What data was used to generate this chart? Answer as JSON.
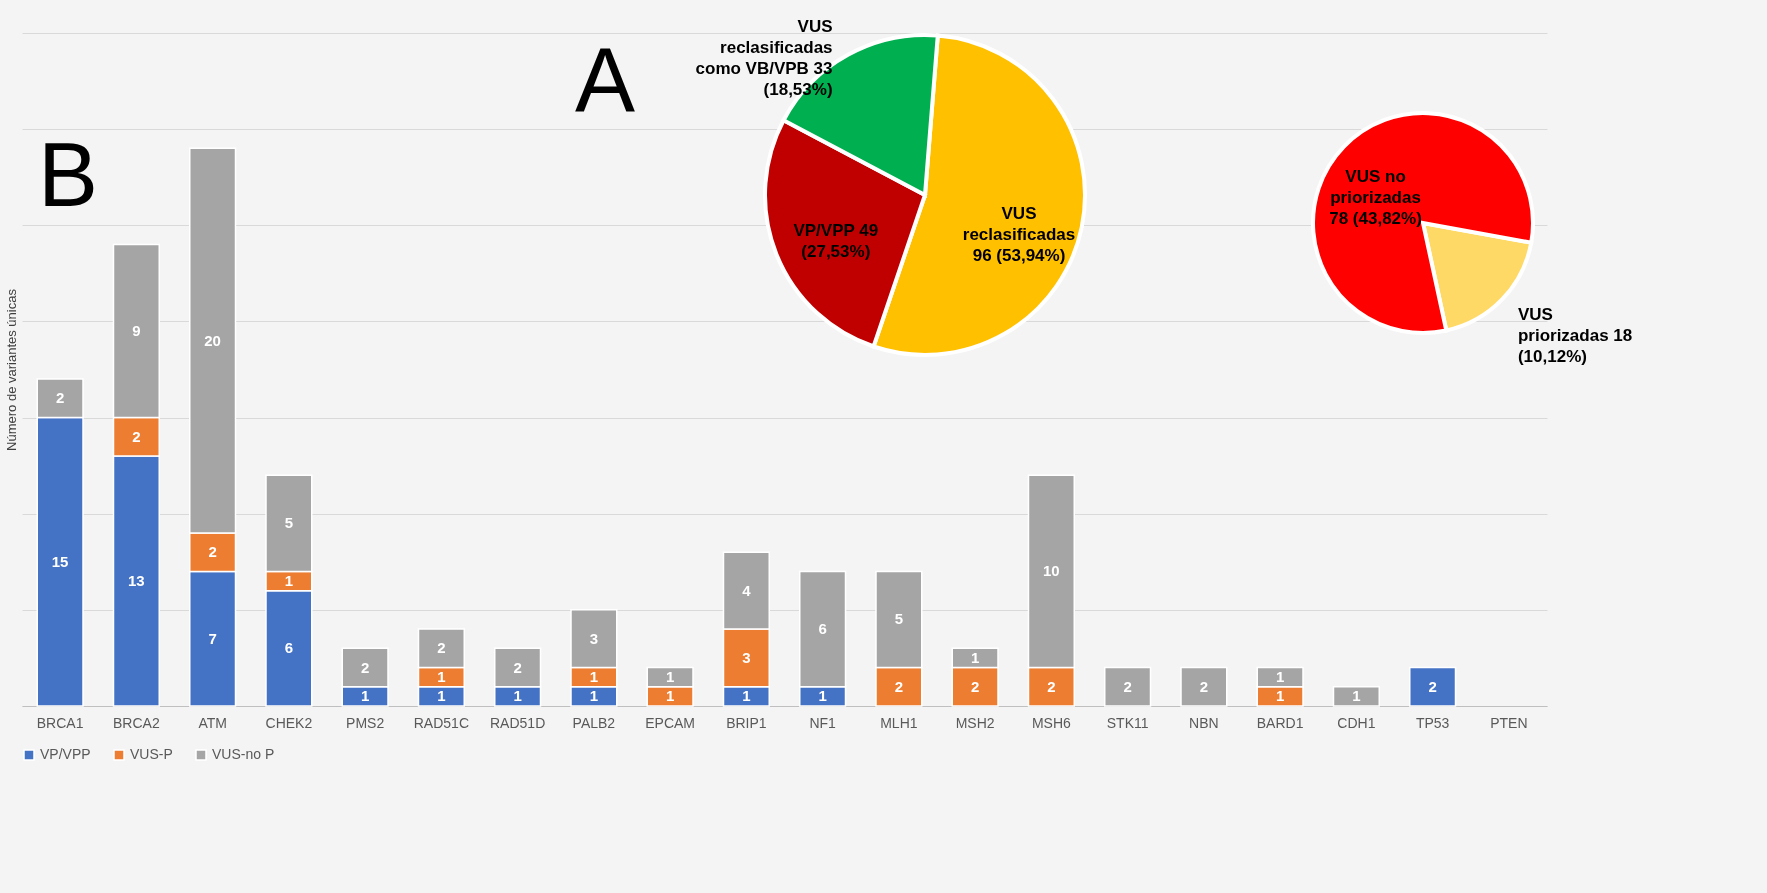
{
  "chart_data": [
    {
      "type": "bar",
      "stacked": true,
      "ylabel": "Número de variantes únicas",
      "categories": [
        "BRCA1",
        "BRCA2",
        "ATM",
        "CHEK2",
        "PMS2",
        "RAD51C",
        "RAD51D",
        "PALB2",
        "EPCAM",
        "BRIP1",
        "NF1",
        "MLH1",
        "MSH2",
        "MSH6",
        "STK11",
        "NBN",
        "BARD1",
        "CDH1",
        "TP53",
        "PTEN"
      ],
      "series": [
        {
          "name": "VP/VPP",
          "color": "#4472c4",
          "values": [
            15,
            13,
            7,
            6,
            1,
            1,
            1,
            1,
            null,
            1,
            1,
            null,
            null,
            null,
            null,
            null,
            null,
            null,
            2,
            null
          ]
        },
        {
          "name": "VUS-P",
          "color": "#ed7d31",
          "values": [
            null,
            2,
            2,
            1,
            null,
            1,
            null,
            1,
            1,
            3,
            null,
            2,
            2,
            2,
            null,
            null,
            1,
            null,
            null,
            null
          ]
        },
        {
          "name": "VUS-no P",
          "color": "#a5a5a5",
          "values": [
            2,
            9,
            20,
            5,
            2,
            2,
            2,
            3,
            1,
            4,
            6,
            5,
            1,
            10,
            2,
            2,
            1,
            1,
            null,
            null
          ]
        }
      ],
      "ylim": [
        0,
        35
      ],
      "yticks": [
        {
          "value": 0,
          "label": null
        },
        {
          "value": 5,
          "label": null
        },
        {
          "value": 10,
          "label": null
        },
        {
          "value": 15,
          "label": null
        },
        {
          "value": 20,
          "label": null
        },
        {
          "value": 25,
          "label": null
        },
        {
          "value": 30,
          "label": null
        },
        {
          "value": 35,
          "label": null
        }
      ],
      "tick_labels": "x",
      "grid": "y",
      "data_labels": true,
      "legend": "bottom",
      "annotations": [
        "B"
      ]
    },
    {
      "type": "pie",
      "categories": [
        "VUS reclasificadas 96 (53,94%)",
        "VP/VPP 49 (27,53%)",
        "VUS reclasificadas como VB/VPB 33 (18,53%)"
      ],
      "values": [
        96,
        49,
        33
      ],
      "colors": [
        "#ffc000",
        "#c00000",
        "#00b050"
      ],
      "annotations": [
        "A"
      ]
    },
    {
      "type": "pie",
      "categories": [
        "VUS priorizadas 18 (10,12%)",
        "VUS no priorizadas 78 (43,82%)"
      ],
      "values": [
        18,
        78
      ],
      "colors": [
        "#ffd966",
        "#ff0000"
      ]
    }
  ]
}
